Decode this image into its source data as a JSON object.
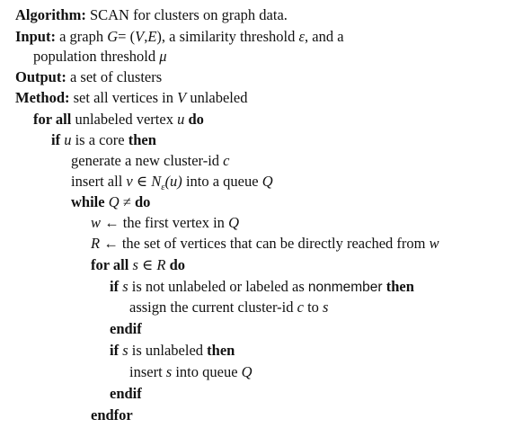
{
  "algorithm": {
    "label": "Algorithm:",
    "text": "SCAN for clusters on graph data."
  },
  "input": {
    "label": "Input:",
    "text_before": "a graph",
    "graph_symbol": "G",
    "graph_eq": "= (",
    "V": "V",
    "comma": ",",
    "E": "E",
    "close": "),",
    "text_after": "a similarity threshold",
    "epsilon": "ε",
    "text_and": ", and a",
    "cont": "population threshold",
    "mu": "μ"
  },
  "output": {
    "label": "Output:",
    "text": "a set of clusters"
  },
  "method": {
    "label": "Method:",
    "text_before": "set all vertices in",
    "V": "V",
    "text_after": "unlabeled"
  },
  "lines": {
    "forall_kw": "for all",
    "forall_text": "unlabeled vertex",
    "forall_u": "u",
    "forall_do": "do",
    "if_kw": "if",
    "if_u": "u",
    "if_text": "is a core",
    "if_then": "then",
    "generate_text": "generate a new cluster-id",
    "generate_c": "c",
    "insert_text": "insert all",
    "insert_v": "v",
    "insert_in": "∈",
    "insert_N": "N",
    "insert_eps": "ε",
    "insert_u": "(u)",
    "insert_queue": "into a queue",
    "insert_Q": "Q",
    "while_kw": "while",
    "while_Q": "Q",
    "while_neq": "≠",
    "while_do": "do",
    "w_var": "w",
    "w_arrow": "←",
    "w_text": "the first vertex in",
    "w_Q": "Q",
    "R_var": "R",
    "R_arrow": "←",
    "R_text": "the set of vertices that can be directly reached from",
    "R_w": "w",
    "forall2_kw": "for all",
    "forall2_s": "s",
    "forall2_in": "∈",
    "forall2_R": "R",
    "forall2_do": "do",
    "if2_kw": "if",
    "if2_s": "s",
    "if2_text": "is not unlabeled or labeled as",
    "if2_nonmember": "nonmember",
    "if2_then": "then",
    "assign_text": "assign the current cluster-id",
    "assign_c": "c",
    "assign_to": "to",
    "assign_s": "s",
    "endif1": "endif",
    "if3_kw": "if",
    "if3_s": "s",
    "if3_text": "is unlabeled",
    "if3_then": "then",
    "insert2_text": "insert",
    "insert2_s": "s",
    "insert2_queue": "into queue",
    "insert2_Q": "Q",
    "endif2": "endif",
    "endfor": "endfor"
  }
}
